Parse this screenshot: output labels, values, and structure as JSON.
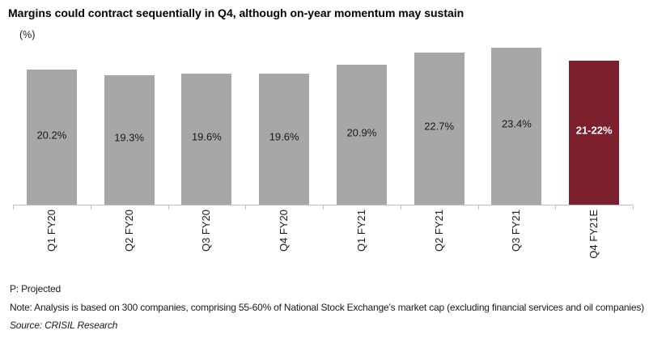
{
  "chart_data": {
    "type": "bar",
    "title": "Margins could contract sequentially in Q4, although on-year momentum may sustain",
    "unit_label": "(%)",
    "categories": [
      "Q1 FY20",
      "Q2 FY20",
      "Q3 FY20",
      "Q4 FY20",
      "Q1 FY21",
      "Q2 FY21",
      "Q3 FY21",
      "Q4 FY21E"
    ],
    "values": [
      20.2,
      19.3,
      19.6,
      19.6,
      20.9,
      22.7,
      23.4,
      21.5
    ],
    "value_labels": [
      "20.2%",
      "19.3%",
      "19.6%",
      "19.6%",
      "20.9%",
      "22.7%",
      "23.4%",
      "21-22%"
    ],
    "highlight_index": 7,
    "xlabel": "",
    "ylabel": "(%)",
    "ylim": [
      0,
      24
    ],
    "grid": false,
    "legend": false,
    "colors": {
      "bar": "#a7a7a7",
      "highlight_bar": "#7d202e",
      "label_on_bar": "#1a1a1a",
      "label_on_highlight": "#ffffff",
      "axis": "#bfbfbf"
    }
  },
  "footer": {
    "projected": "P: Projected",
    "note": "Note: Analysis is based on 300 companies, comprising 55-60% of National Stock Exchange’s market cap (excluding financial services and oil companies)",
    "source": "Source: CRISIL Research"
  }
}
